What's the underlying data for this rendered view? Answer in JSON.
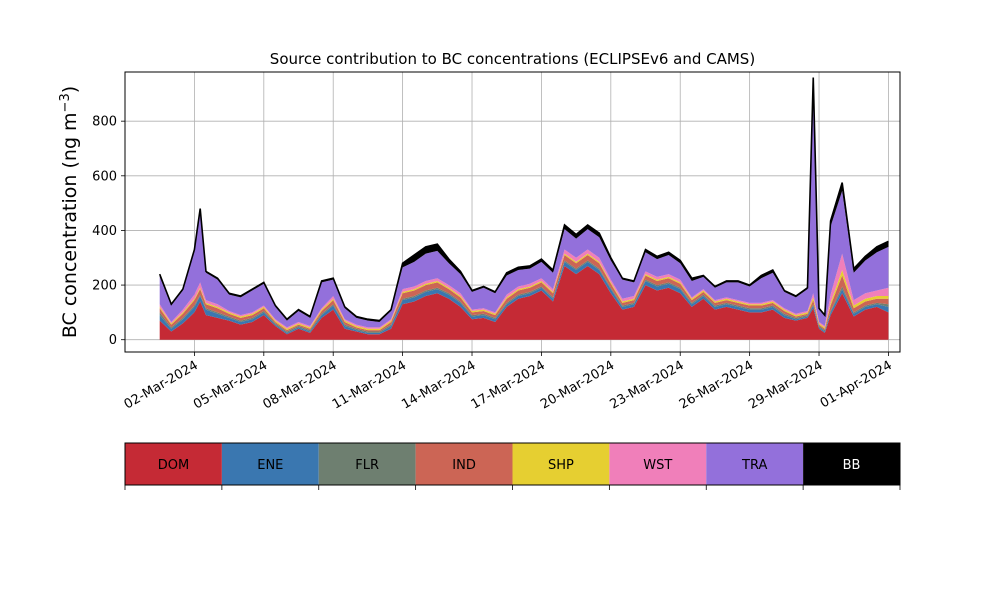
{
  "chart_data": {
    "type": "area",
    "stacked": true,
    "title": "Source contribution to BC concentrations (ECLIPSEv6 and CAMS)",
    "ylabel": "BC concentration (ng m",
    "ylabel_exponent": "−3",
    "ylabel_close": ")",
    "ylim": [
      -45,
      980
    ],
    "xlim": [
      "2024-02-28T00:00",
      "2024-04-01T12:00"
    ],
    "yticks": [
      0,
      200,
      400,
      600,
      800
    ],
    "xticks": [
      "02-Mar-2024",
      "05-Mar-2024",
      "08-Mar-2024",
      "11-Mar-2024",
      "14-Mar-2024",
      "17-Mar-2024",
      "20-Mar-2024",
      "23-Mar-2024",
      "26-Mar-2024",
      "29-Mar-2024",
      "01-Apr-2024"
    ],
    "xtick_dates": [
      "2024-03-02",
      "2024-03-05",
      "2024-03-08",
      "2024-03-11",
      "2024-03-14",
      "2024-03-17",
      "2024-03-20",
      "2024-03-23",
      "2024-03-26",
      "2024-03-29",
      "2024-04-01"
    ],
    "grid": true,
    "total_outline_color": "#000000",
    "x": [
      "2024-02-29T12:00",
      "2024-03-01T00:00",
      "2024-03-01T12:00",
      "2024-03-02T00:00",
      "2024-03-02T06:00",
      "2024-03-02T12:00",
      "2024-03-03T00:00",
      "2024-03-03T12:00",
      "2024-03-04T00:00",
      "2024-03-04T12:00",
      "2024-03-05T00:00",
      "2024-03-05T12:00",
      "2024-03-06T00:00",
      "2024-03-06T12:00",
      "2024-03-07T00:00",
      "2024-03-07T12:00",
      "2024-03-08T00:00",
      "2024-03-08T12:00",
      "2024-03-09T00:00",
      "2024-03-09T12:00",
      "2024-03-10T00:00",
      "2024-03-10T12:00",
      "2024-03-11T00:00",
      "2024-03-11T12:00",
      "2024-03-12T00:00",
      "2024-03-12T12:00",
      "2024-03-13T00:00",
      "2024-03-13T12:00",
      "2024-03-14T00:00",
      "2024-03-14T12:00",
      "2024-03-15T00:00",
      "2024-03-15T12:00",
      "2024-03-16T00:00",
      "2024-03-16T12:00",
      "2024-03-17T00:00",
      "2024-03-17T12:00",
      "2024-03-18T00:00",
      "2024-03-18T12:00",
      "2024-03-19T00:00",
      "2024-03-19T12:00",
      "2024-03-20T00:00",
      "2024-03-20T12:00",
      "2024-03-21T00:00",
      "2024-03-21T12:00",
      "2024-03-22T00:00",
      "2024-03-22T12:00",
      "2024-03-23T00:00",
      "2024-03-23T12:00",
      "2024-03-24T00:00",
      "2024-03-24T12:00",
      "2024-03-25T00:00",
      "2024-03-25T12:00",
      "2024-03-26T00:00",
      "2024-03-26T12:00",
      "2024-03-27T00:00",
      "2024-03-27T12:00",
      "2024-03-28T00:00",
      "2024-03-28T12:00",
      "2024-03-28T18:00",
      "2024-03-29T00:00",
      "2024-03-29T06:00",
      "2024-03-29T12:00",
      "2024-03-30T00:00",
      "2024-03-30T12:00",
      "2024-03-31T00:00",
      "2024-03-31T12:00",
      "2024-04-01T00:00"
    ],
    "series": [
      {
        "name": "DOM",
        "color": "#c52a35",
        "values": [
          70,
          30,
          60,
          100,
          140,
          90,
          80,
          70,
          55,
          65,
          90,
          50,
          20,
          40,
          25,
          80,
          110,
          40,
          30,
          20,
          20,
          40,
          130,
          140,
          160,
          170,
          150,
          120,
          75,
          80,
          65,
          120,
          150,
          160,
          180,
          140,
          270,
          240,
          270,
          240,
          170,
          110,
          120,
          200,
          180,
          190,
          170,
          120,
          150,
          110,
          120,
          110,
          100,
          100,
          110,
          80,
          70,
          80,
          115,
          40,
          25,
          90,
          170,
          85,
          110,
          120,
          100
        ]
      },
      {
        "name": "ENE",
        "color": "#3a77b0",
        "values": [
          20,
          10,
          15,
          20,
          20,
          20,
          15,
          10,
          10,
          10,
          10,
          5,
          5,
          5,
          5,
          10,
          15,
          10,
          5,
          5,
          5,
          10,
          15,
          15,
          15,
          15,
          15,
          15,
          10,
          10,
          10,
          10,
          10,
          10,
          10,
          10,
          15,
          15,
          15,
          15,
          15,
          10,
          10,
          15,
          15,
          15,
          15,
          10,
          10,
          10,
          10,
          10,
          10,
          10,
          10,
          10,
          5,
          5,
          10,
          5,
          5,
          10,
          15,
          10,
          10,
          10,
          20
        ]
      },
      {
        "name": "FLR",
        "color": "#6e7f70",
        "values": [
          10,
          5,
          5,
          5,
          5,
          5,
          5,
          5,
          5,
          5,
          5,
          5,
          5,
          5,
          5,
          5,
          5,
          5,
          5,
          5,
          5,
          5,
          5,
          5,
          5,
          5,
          5,
          5,
          5,
          5,
          5,
          5,
          5,
          5,
          5,
          5,
          5,
          5,
          5,
          5,
          5,
          5,
          5,
          5,
          5,
          5,
          5,
          5,
          5,
          5,
          5,
          5,
          5,
          5,
          5,
          5,
          5,
          5,
          5,
          5,
          5,
          5,
          10,
          5,
          5,
          5,
          10
        ]
      },
      {
        "name": "IND",
        "color": "#cc6555",
        "values": [
          15,
          10,
          15,
          20,
          20,
          15,
          15,
          10,
          10,
          10,
          10,
          5,
          5,
          5,
          5,
          10,
          15,
          10,
          5,
          5,
          5,
          10,
          20,
          20,
          20,
          20,
          15,
          15,
          10,
          10,
          10,
          15,
          15,
          15,
          15,
          15,
          20,
          20,
          20,
          20,
          15,
          10,
          10,
          15,
          15,
          15,
          15,
          10,
          10,
          10,
          10,
          10,
          10,
          10,
          10,
          10,
          5,
          5,
          15,
          5,
          5,
          20,
          40,
          15,
          15,
          15,
          20
        ]
      },
      {
        "name": "SHP",
        "color": "#e6cf31",
        "values": [
          5,
          5,
          5,
          5,
          5,
          5,
          5,
          5,
          5,
          5,
          5,
          5,
          5,
          5,
          5,
          5,
          5,
          5,
          5,
          5,
          5,
          5,
          5,
          5,
          5,
          5,
          5,
          5,
          5,
          5,
          5,
          5,
          5,
          5,
          5,
          5,
          5,
          5,
          5,
          5,
          5,
          5,
          5,
          5,
          5,
          5,
          5,
          5,
          5,
          5,
          5,
          5,
          5,
          5,
          5,
          5,
          5,
          5,
          10,
          5,
          5,
          10,
          20,
          10,
          10,
          10,
          10
        ]
      },
      {
        "name": "WST",
        "color": "#f07fba",
        "values": [
          10,
          5,
          10,
          15,
          20,
          10,
          10,
          5,
          5,
          5,
          5,
          5,
          5,
          5,
          5,
          5,
          10,
          5,
          5,
          5,
          5,
          5,
          10,
          10,
          10,
          10,
          10,
          10,
          5,
          5,
          5,
          10,
          10,
          10,
          10,
          10,
          15,
          15,
          15,
          15,
          10,
          10,
          10,
          10,
          10,
          10,
          10,
          5,
          5,
          5,
          5,
          5,
          5,
          5,
          5,
          5,
          5,
          5,
          15,
          5,
          5,
          30,
          60,
          20,
          20,
          20,
          30
        ]
      },
      {
        "name": "TRA",
        "color": "#9370db",
        "values": [
          100,
          60,
          70,
          160,
          260,
          100,
          90,
          60,
          65,
          80,
          80,
          45,
          25,
          40,
          30,
          95,
          60,
          40,
          25,
          25,
          20,
          30,
          80,
          90,
          100,
          100,
          80,
          70,
          65,
          75,
          70,
          70,
          60,
          55,
          60,
          60,
          75,
          70,
          75,
          75,
          70,
          70,
          50,
          70,
          65,
          70,
          60,
          60,
          45,
          45,
          55,
          65,
          60,
          90,
          100,
          60,
          60,
          80,
          780,
          45,
          35,
          250,
          230,
          100,
          120,
          140,
          150
        ]
      },
      {
        "name": "BB",
        "color": "#000000",
        "values": [
          10,
          5,
          5,
          5,
          10,
          5,
          5,
          5,
          5,
          5,
          5,
          5,
          5,
          5,
          5,
          5,
          5,
          5,
          5,
          5,
          5,
          5,
          15,
          25,
          25,
          25,
          15,
          10,
          5,
          5,
          5,
          10,
          10,
          10,
          10,
          10,
          15,
          15,
          15,
          15,
          10,
          5,
          5,
          10,
          10,
          10,
          10,
          10,
          5,
          5,
          5,
          5,
          5,
          10,
          10,
          5,
          5,
          5,
          10,
          5,
          5,
          20,
          30,
          15,
          15,
          20,
          20
        ]
      }
    ]
  }
}
